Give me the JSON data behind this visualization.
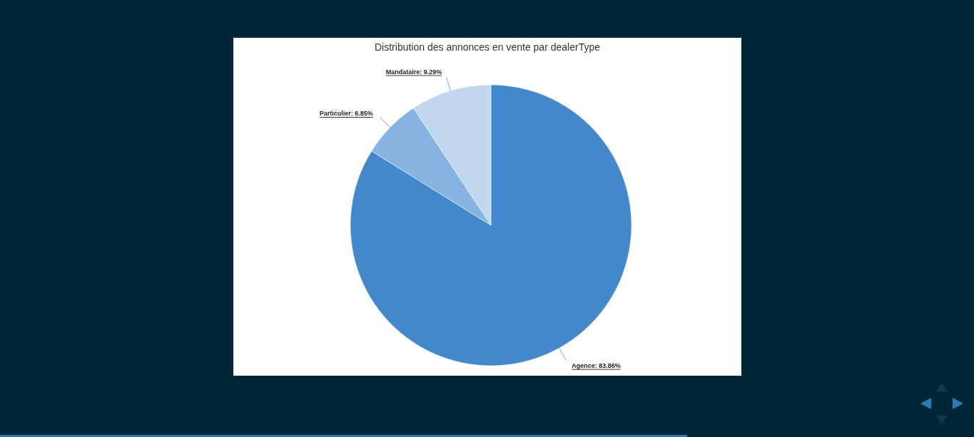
{
  "chart_data": {
    "type": "pie",
    "title": "Distribution des annonces en vente par dealerType",
    "categories": [
      "Agence",
      "Particulier",
      "Mandataire"
    ],
    "values": [
      83.86,
      6.85,
      9.29
    ],
    "value_labels": [
      "83.86%",
      "6.85%",
      "9.29%"
    ],
    "colors": [
      "#4488cc",
      "#86b3df",
      "#c0d7ee"
    ],
    "legend": false
  }
}
